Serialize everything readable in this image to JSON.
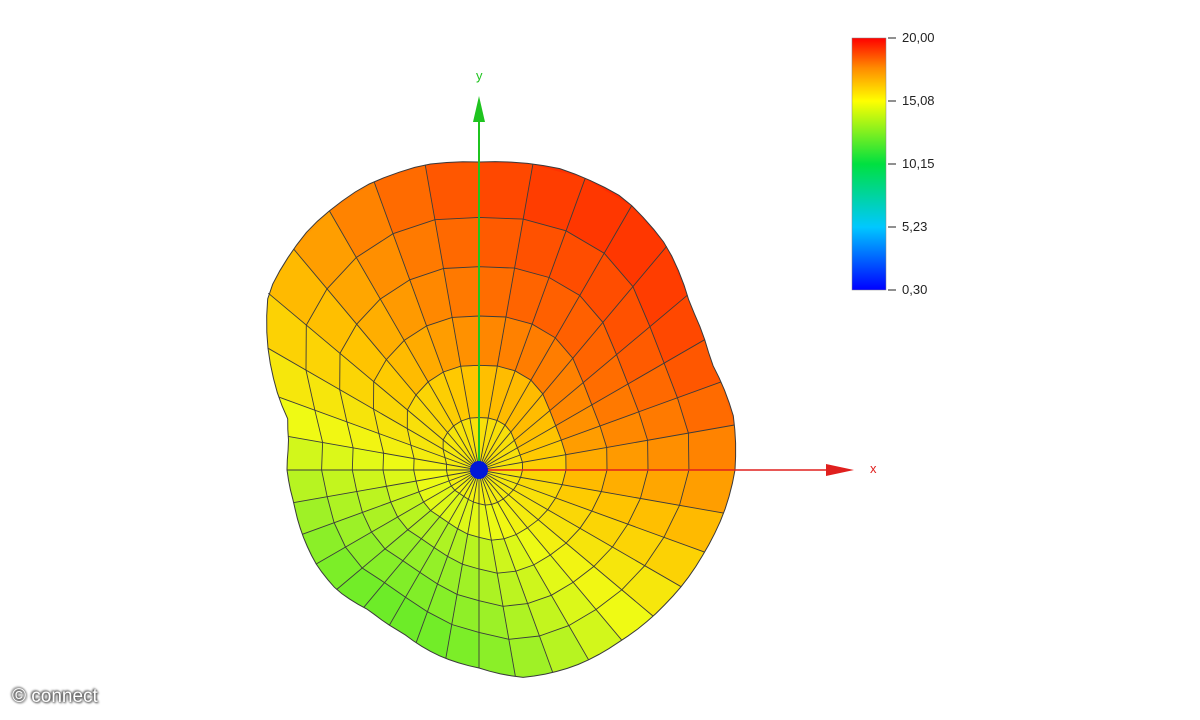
{
  "axes": {
    "x_label": "x",
    "y_label": "y",
    "x_color": "#e0201e",
    "y_color": "#1fc41f"
  },
  "colorbar": {
    "ticks": [
      "20,00",
      "15,08",
      "10,15",
      "5,23",
      "0,30"
    ],
    "min": 0.3,
    "max": 20.0,
    "colors": [
      "#0000ff",
      "#00c8ff",
      "#00e040",
      "#ffff00",
      "#ff8000",
      "#ff0000"
    ]
  },
  "center_dot_color": "#0018d8",
  "watermark": "© connect"
}
